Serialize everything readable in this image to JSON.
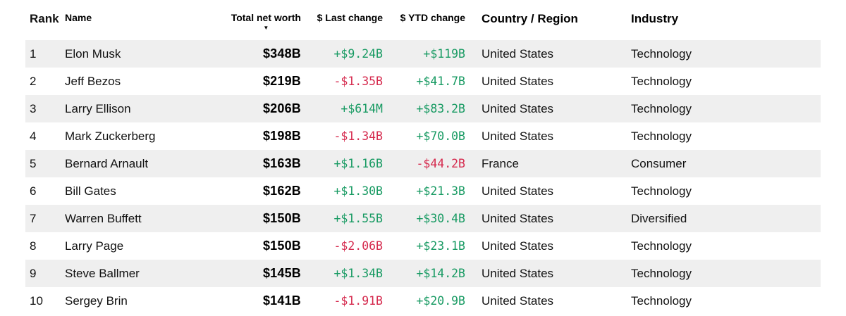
{
  "colors": {
    "positive": "#179a62",
    "negative": "#d5294d",
    "row_alt": "#efefef",
    "header_text": "#000000",
    "body_text": "#111111"
  },
  "icons": {
    "sort_desc": "▼"
  },
  "table": {
    "columns": {
      "rank": "Rank",
      "name": "Name",
      "net_worth": "Total net worth",
      "last_change": "$ Last change",
      "ytd_change": "$ YTD change",
      "country": "Country / Region",
      "industry": "Industry"
    },
    "sorted_column": "net_worth",
    "sort_direction": "desc",
    "rows": [
      {
        "rank": "1",
        "name": "Elon Musk",
        "net_worth": "$348B",
        "last_change": "+$9.24B",
        "ytd_change": "+$119B",
        "country": "United States",
        "industry": "Technology"
      },
      {
        "rank": "2",
        "name": "Jeff Bezos",
        "net_worth": "$219B",
        "last_change": "-$1.35B",
        "ytd_change": "+$41.7B",
        "country": "United States",
        "industry": "Technology"
      },
      {
        "rank": "3",
        "name": "Larry Ellison",
        "net_worth": "$206B",
        "last_change": "+$614M",
        "ytd_change": "+$83.2B",
        "country": "United States",
        "industry": "Technology"
      },
      {
        "rank": "4",
        "name": "Mark Zuckerberg",
        "net_worth": "$198B",
        "last_change": "-$1.34B",
        "ytd_change": "+$70.0B",
        "country": "United States",
        "industry": "Technology"
      },
      {
        "rank": "5",
        "name": "Bernard Arnault",
        "net_worth": "$163B",
        "last_change": "+$1.16B",
        "ytd_change": "-$44.2B",
        "country": "France",
        "industry": "Consumer"
      },
      {
        "rank": "6",
        "name": "Bill Gates",
        "net_worth": "$162B",
        "last_change": "+$1.30B",
        "ytd_change": "+$21.3B",
        "country": "United States",
        "industry": "Technology"
      },
      {
        "rank": "7",
        "name": "Warren Buffett",
        "net_worth": "$150B",
        "last_change": "+$1.55B",
        "ytd_change": "+$30.4B",
        "country": "United States",
        "industry": "Diversified"
      },
      {
        "rank": "8",
        "name": "Larry Page",
        "net_worth": "$150B",
        "last_change": "-$2.06B",
        "ytd_change": "+$23.1B",
        "country": "United States",
        "industry": "Technology"
      },
      {
        "rank": "9",
        "name": "Steve Ballmer",
        "net_worth": "$145B",
        "last_change": "+$1.34B",
        "ytd_change": "+$14.2B",
        "country": "United States",
        "industry": "Technology"
      },
      {
        "rank": "10",
        "name": "Sergey Brin",
        "net_worth": "$141B",
        "last_change": "-$1.91B",
        "ytd_change": "+$20.9B",
        "country": "United States",
        "industry": "Technology"
      }
    ]
  }
}
